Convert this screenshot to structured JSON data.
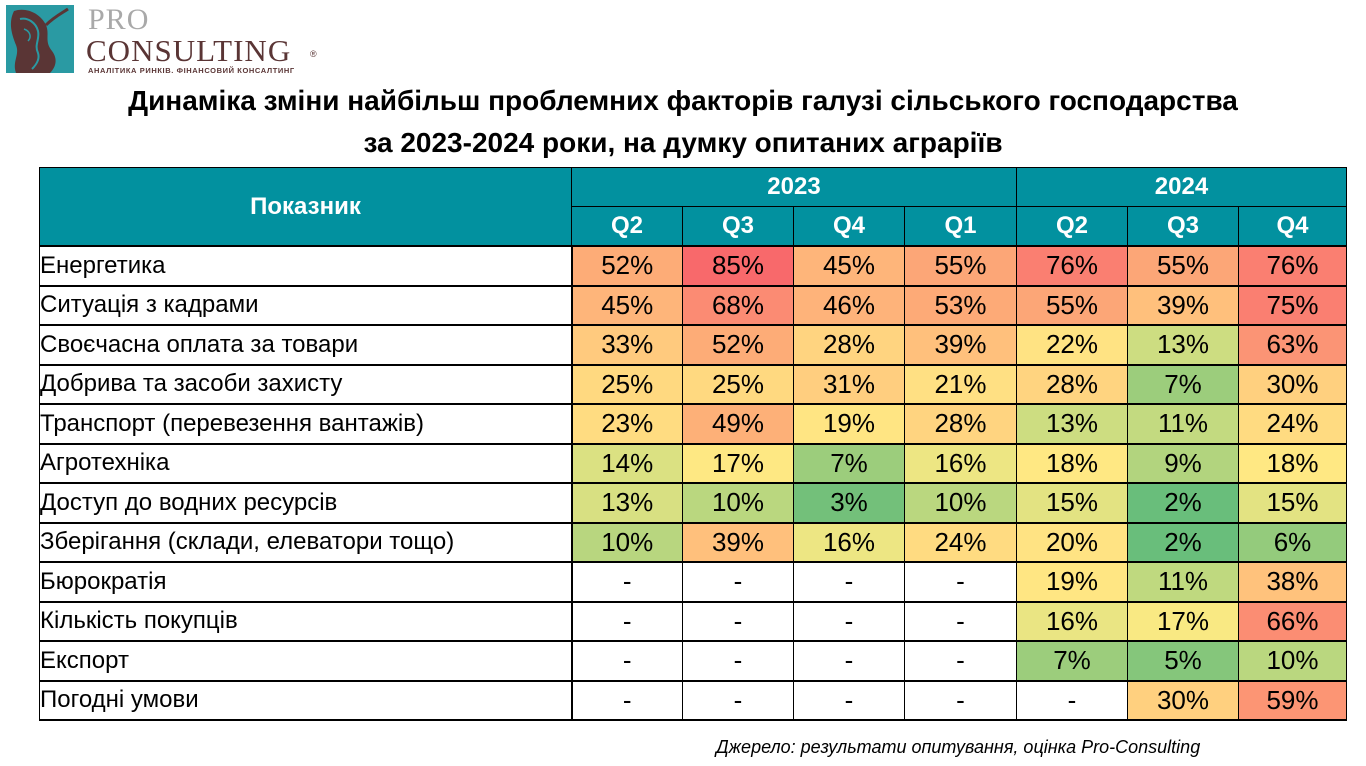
{
  "logo": {
    "line1": "PRO",
    "line2": "CONSULTING",
    "registered": "®",
    "tagline": "АНАЛІТИКА РИНКІВ. ФІНАНСОВИЙ КОНСАЛТИНГ"
  },
  "chart_data": {
    "type": "heatmap",
    "title_line1": "Динаміка зміни найбільш проблемних факторів галузі сільського господарства",
    "title_line2": "за 2023-2024 роки, на думку опитаних аграріїв",
    "row_header": "Показник",
    "years": [
      {
        "label": "2023"
      },
      {
        "label": "2024"
      }
    ],
    "columns": [
      "Q2",
      "Q3",
      "Q4",
      "Q1",
      "Q2",
      "Q3",
      "Q4"
    ],
    "column_years": [
      "2023",
      "2023",
      "2023",
      "2024",
      "2024",
      "2024",
      "2024"
    ],
    "rows": [
      {
        "label": "Енергетика",
        "values": [
          "52%",
          "85%",
          "45%",
          "55%",
          "76%",
          "55%",
          "76%"
        ],
        "colors": [
          "#fdac77",
          "#f8696b",
          "#feb57a",
          "#fca677",
          "#fa7f71",
          "#fca677",
          "#fa7f71"
        ]
      },
      {
        "label": "Ситуація з кадрами",
        "values": [
          "45%",
          "68%",
          "46%",
          "53%",
          "55%",
          "39%",
          "75%"
        ],
        "colors": [
          "#feb57a",
          "#fb8b73",
          "#feb37a",
          "#fdaa77",
          "#fca677",
          "#ffc07c",
          "#fa7f71"
        ]
      },
      {
        "label": "Своєчасна оплата за товари",
        "values": [
          "33%",
          "52%",
          "28%",
          "39%",
          "22%",
          "13%",
          "63%"
        ],
        "colors": [
          "#ffca7e",
          "#fdac77",
          "#ffd480",
          "#ffc07c",
          "#ffe383",
          "#cddd81",
          "#fb9475"
        ]
      },
      {
        "label": "Добрива та засоби захисту",
        "values": [
          "25%",
          "25%",
          "31%",
          "21%",
          "28%",
          "7%",
          "30%"
        ],
        "colors": [
          "#ffd980",
          "#ffd980",
          "#ffce7f",
          "#ffe083",
          "#ffd480",
          "#9ccd7c",
          "#ffd07f"
        ]
      },
      {
        "label": "Транспорт (перевезення вантажів)",
        "values": [
          "23%",
          "49%",
          "19%",
          "28%",
          "13%",
          "11%",
          "24%"
        ],
        "colors": [
          "#ffdc81",
          "#fdb078",
          "#ffe583",
          "#ffd480",
          "#cddd81",
          "#c3da80",
          "#ffdb81"
        ]
      },
      {
        "label": "Агротехніка",
        "values": [
          "14%",
          "17%",
          "7%",
          "16%",
          "18%",
          "9%",
          "18%"
        ],
        "colors": [
          "#dbe182",
          "#fee883",
          "#9ccd7c",
          "#ede683",
          "#ffe883",
          "#b2d47e",
          "#ffe883"
        ]
      },
      {
        "label": "Доступ до водних ресурсів",
        "values": [
          "13%",
          "10%",
          "3%",
          "10%",
          "15%",
          "2%",
          "15%"
        ],
        "colors": [
          "#d8e082",
          "#bad77f",
          "#73c07a",
          "#bad77f",
          "#e3e382",
          "#69be7b",
          "#e3e382"
        ]
      },
      {
        "label": "Зберігання (склади, елеватори тощо)",
        "values": [
          "10%",
          "39%",
          "16%",
          "24%",
          "20%",
          "2%",
          "6%"
        ],
        "colors": [
          "#b8d67f",
          "#ffc07c",
          "#ede683",
          "#ffdb81",
          "#ffe383",
          "#69be7b",
          "#94cb7c"
        ]
      },
      {
        "label": "Бюрократія",
        "values": [
          "-",
          "-",
          "-",
          "-",
          "19%",
          "11%",
          "38%"
        ],
        "colors": [
          "#ffffff",
          "#ffffff",
          "#ffffff",
          "#ffffff",
          "#ffe683",
          "#bfd97f",
          "#ffc27c"
        ]
      },
      {
        "label": "Кількість покупців",
        "values": [
          "-",
          "-",
          "-",
          "-",
          "16%",
          "17%",
          "66%"
        ],
        "colors": [
          "#ffffff",
          "#ffffff",
          "#ffffff",
          "#ffffff",
          "#eae583",
          "#f9e983",
          "#fb8d73"
        ]
      },
      {
        "label": "Експорт",
        "values": [
          "-",
          "-",
          "-",
          "-",
          "7%",
          "5%",
          "10%"
        ],
        "colors": [
          "#ffffff",
          "#ffffff",
          "#ffffff",
          "#ffffff",
          "#9ccd7c",
          "#85c67b",
          "#bad77f"
        ]
      },
      {
        "label": "Погодні умови",
        "values": [
          "-",
          "-",
          "-",
          "-",
          "-",
          "30%",
          "59%"
        ],
        "colors": [
          "#ffffff",
          "#ffffff",
          "#ffffff",
          "#ffffff",
          "#ffffff",
          "#ffd07f",
          "#fc9574"
        ]
      }
    ],
    "header_color": "#02919f"
  },
  "source": "Джерело:  результати опитування, оцінка Pro-Consulting"
}
